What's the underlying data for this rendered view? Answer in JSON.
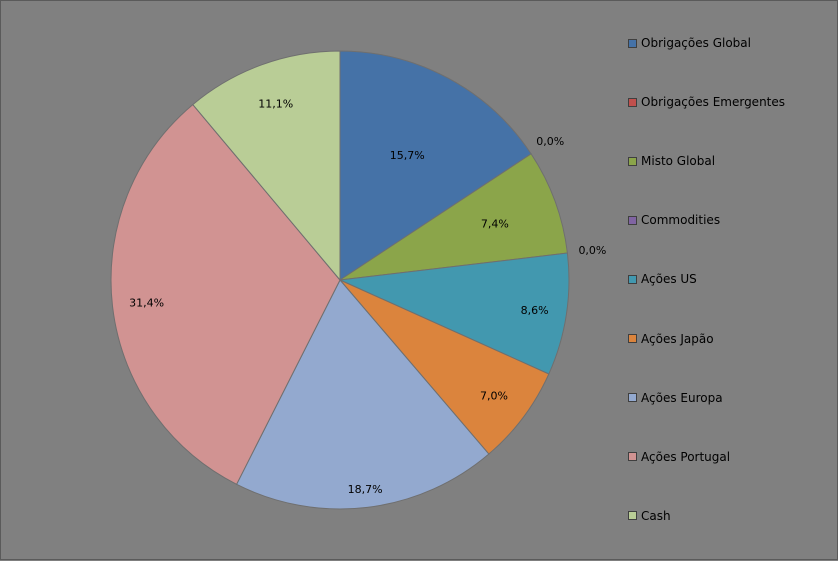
{
  "chart_data": {
    "type": "pie",
    "labels": [
      "Obrigações Global",
      "Obrigações Emergentes",
      "Misto Global",
      "Commodities",
      "Ações US",
      "Ações Japão",
      "Ações Europa",
      "Ações Portugal",
      "Cash"
    ],
    "values": [
      15.7,
      0.0,
      7.4,
      0.0,
      8.6,
      7.0,
      18.7,
      31.4,
      11.1
    ],
    "value_labels": [
      "15,7%",
      "0,0%",
      "7,4%",
      "0,0%",
      "8,6%",
      "7,0%",
      "18,7%",
      "31,4%",
      "11,1%"
    ],
    "colors": [
      "#4572a7",
      "#c0504d",
      "#8ba54a",
      "#8064a2",
      "#4298af",
      "#db843d",
      "#93a9cf",
      "#d19392",
      "#b9cd96"
    ],
    "unit": "%",
    "start_angle": "12 o'clock",
    "direction": "clockwise",
    "legend_position": "right",
    "title": ""
  }
}
